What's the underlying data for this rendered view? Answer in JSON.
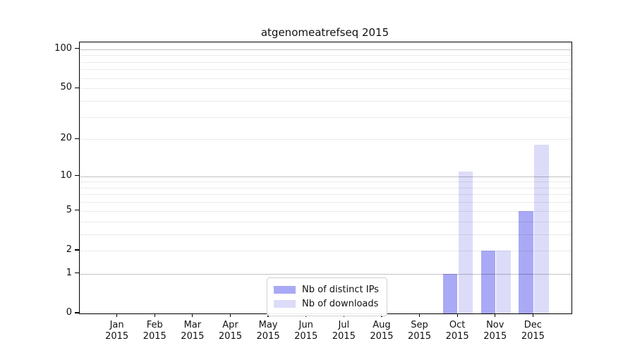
{
  "title": "atgenomeatrefseq 2015",
  "chart_data": {
    "type": "bar",
    "title": "atgenomeatrefseq 2015",
    "categories": [
      "Jan",
      "Feb",
      "Mar",
      "Apr",
      "May",
      "Jun",
      "Jul",
      "Aug",
      "Sep",
      "Oct",
      "Nov",
      "Dec"
    ],
    "category_year": "2015",
    "series": [
      {
        "name": "Nb of distinct IPs",
        "color": "#a9a9f6",
        "values": [
          0,
          0,
          0,
          0,
          0,
          0,
          0,
          0,
          0,
          1,
          2,
          5
        ]
      },
      {
        "name": "Nb of downloads",
        "color": "#dcdcf9",
        "values": [
          0,
          0,
          0,
          0,
          0,
          0,
          0,
          0,
          0,
          11,
          2,
          18
        ]
      }
    ],
    "xlabel": "",
    "ylabel": "",
    "y_scale": "log1p",
    "ylim": [
      0,
      113
    ],
    "y_max": 113,
    "y_ticks_labeled": [
      0,
      1,
      2,
      5,
      10,
      20,
      50,
      100
    ],
    "y_gridlines_major": [
      1,
      10,
      100
    ],
    "y_gridlines_minor": [
      2,
      3,
      4,
      5,
      6,
      7,
      8,
      9,
      20,
      30,
      40,
      50,
      60,
      70,
      80,
      90
    ],
    "grid": true,
    "legend_position": "lower center"
  },
  "colors": {
    "background": "#ffffff",
    "spine": "#000000",
    "text": "#111111",
    "major_grid": "rgba(0,0,0,0.24)",
    "minor_grid": "rgba(0,0,0,0.08)",
    "series_ips": "#a9a9f6",
    "series_downloads": "#dcdcf9"
  }
}
